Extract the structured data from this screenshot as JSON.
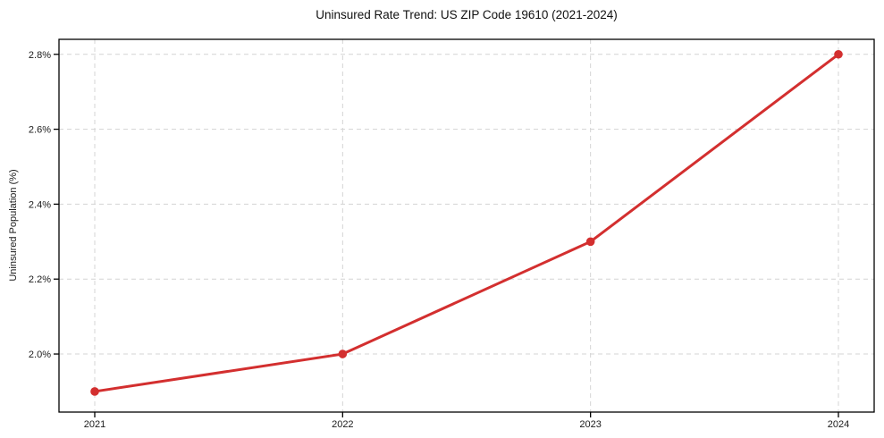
{
  "page": {
    "background_color": "#ffffff"
  },
  "chart_data": {
    "type": "line",
    "title": "Uninsured Rate Trend: US ZIP Code 19610 (2021-2024)",
    "xlabel": "",
    "ylabel": "Uninsured Population (%)",
    "categories": [
      "2021",
      "2022",
      "2023",
      "2024"
    ],
    "series": [
      {
        "name": "Uninsured Population (%)",
        "values": [
          1.9,
          2.0,
          2.3,
          2.8
        ],
        "color": "#d32f2f"
      }
    ],
    "ylim": [
      1.845,
      2.84
    ],
    "yticks": [
      2.0,
      2.2,
      2.4,
      2.6,
      2.8
    ],
    "ytick_suffix": "%",
    "ytick_decimals": 1,
    "grid": true,
    "grid_style": "dashed",
    "legend": "none"
  },
  "style": {
    "line_color": "#d32f2f",
    "marker_color": "#d32f2f",
    "grid_color": "#d4d4d4",
    "axis_border_color": "#000000",
    "text_color": "#1a1a1a"
  }
}
